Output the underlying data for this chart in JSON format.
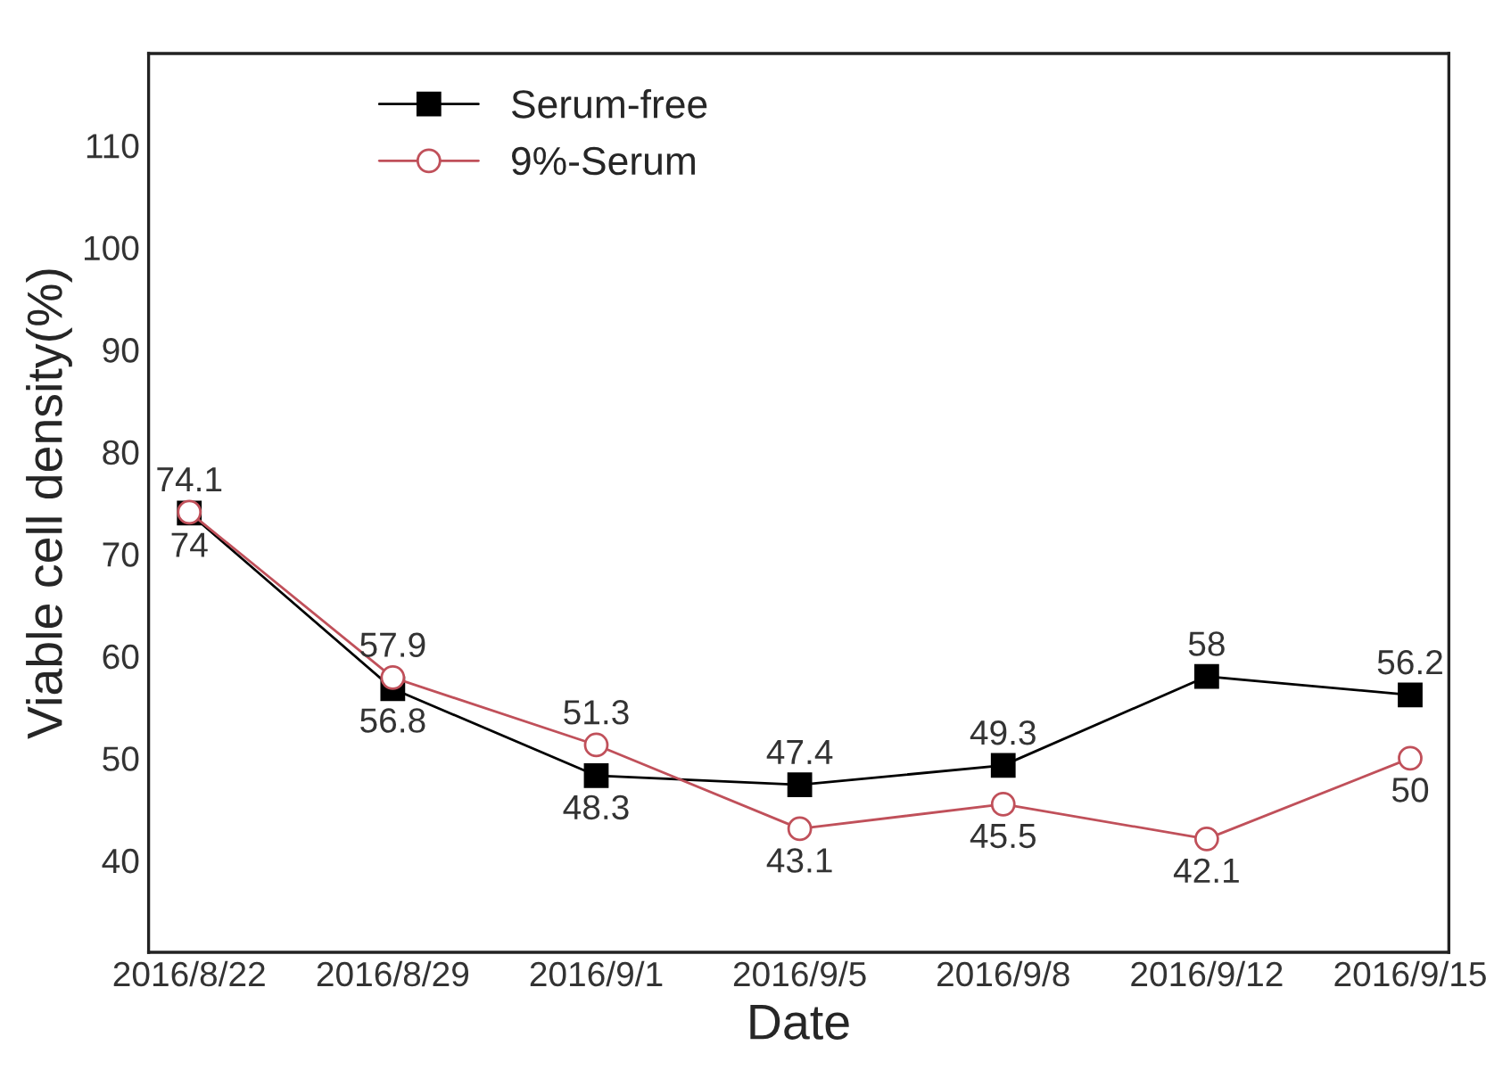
{
  "chart_data": {
    "type": "line",
    "xlabel": "Date",
    "ylabel": "Viable cell density(%)",
    "categories": [
      "2016/8/22",
      "2016/8/29",
      "2016/9/1",
      "2016/9/5",
      "2016/9/8",
      "2016/9/12",
      "2016/9/15"
    ],
    "series": [
      {
        "name": "Serum-free",
        "color": "#000000",
        "marker": "square",
        "values": [
          74,
          56.8,
          48.3,
          47.4,
          49.3,
          58,
          56.2
        ]
      },
      {
        "name": "9%-Serum",
        "color": "#c0505a",
        "marker": "circle",
        "values": [
          74.1,
          57.9,
          51.3,
          43.1,
          45.5,
          42.1,
          50
        ]
      }
    ],
    "ylim": [
      31,
      119
    ],
    "yticks": [
      40,
      50,
      60,
      70,
      80,
      90,
      100,
      110
    ],
    "data_labels": true,
    "legend": "top left",
    "grid": false
  }
}
